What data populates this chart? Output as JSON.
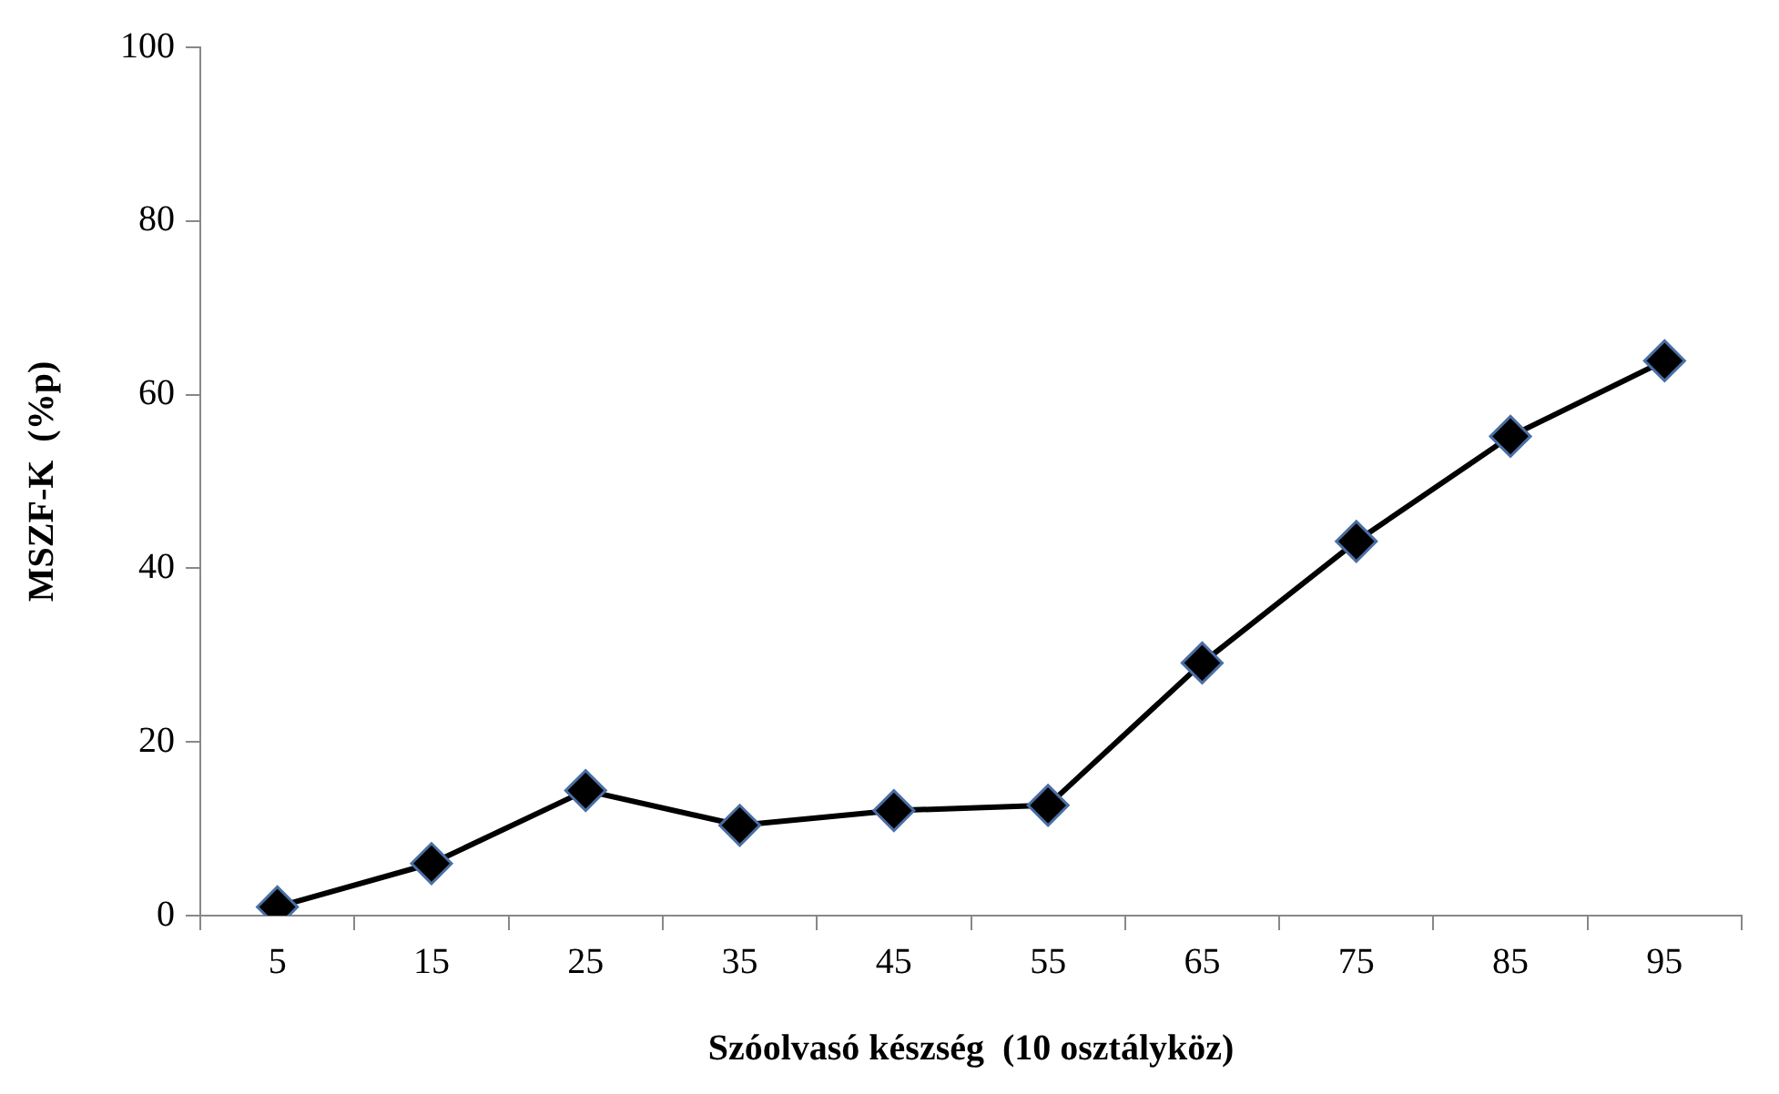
{
  "chart_data": {
    "type": "line",
    "xlabel": "Szóolvasó készség  (10 osztályköz)",
    "ylabel": "MSZF-K  (%p)",
    "categories": [
      "5",
      "15",
      "25",
      "35",
      "45",
      "55",
      "65",
      "75",
      "85",
      "95"
    ],
    "series": [
      {
        "color": "#000000",
        "values": [
          1,
          6,
          14.4,
          10.4,
          12.1,
          12.7,
          29.1,
          43.1,
          55.2,
          63.9
        ]
      }
    ],
    "ylim": [
      0,
      100
    ],
    "yticks": [
      0,
      20,
      40,
      60,
      80,
      100
    ],
    "grid": false,
    "legend": false,
    "marker": "diamond",
    "line_style": "solid"
  }
}
